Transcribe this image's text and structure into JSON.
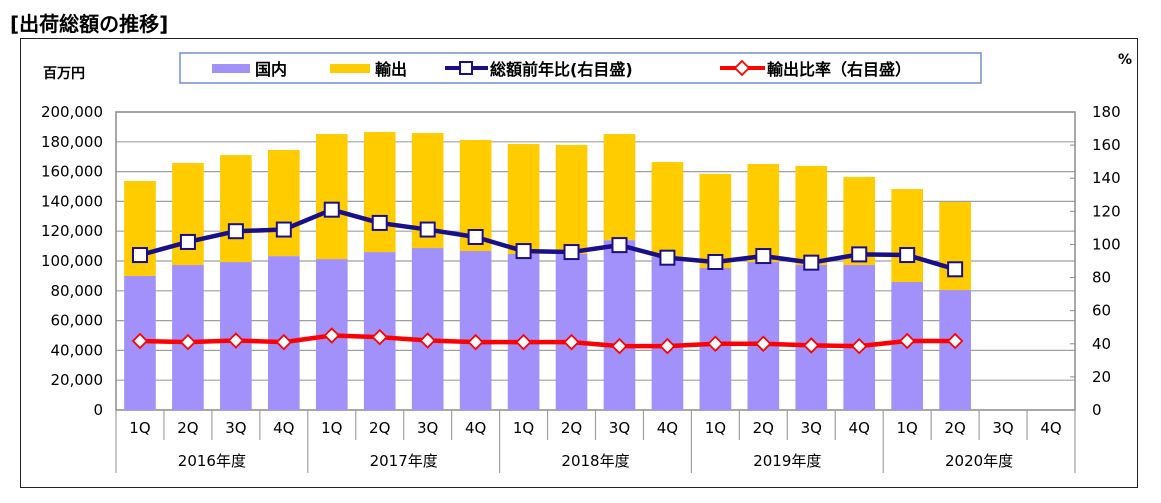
{
  "title": "[出荷総額の推移]",
  "chart_data": {
    "type": "bar",
    "stacked": true,
    "title": "[出荷総額の推移]",
    "left_axis": {
      "label": "百万円",
      "range": [
        0,
        200000
      ],
      "ticks": [
        "0",
        "20,000",
        "40,000",
        "60,000",
        "80,000",
        "100,000",
        "120,000",
        "140,000",
        "160,000",
        "180,000",
        "200,000"
      ],
      "tick_values": [
        0,
        20000,
        40000,
        60000,
        80000,
        100000,
        120000,
        140000,
        160000,
        180000,
        200000
      ]
    },
    "right_axis": {
      "label": "%",
      "range": [
        0,
        180
      ],
      "ticks": [
        "0",
        "20",
        "40",
        "60",
        "80",
        "100",
        "120",
        "140",
        "160",
        "180"
      ],
      "tick_values": [
        0,
        20,
        40,
        60,
        80,
        100,
        120,
        140,
        160,
        180
      ]
    },
    "grid": true,
    "legend_position": "top",
    "categories": [
      "1Q",
      "2Q",
      "3Q",
      "4Q",
      "1Q",
      "2Q",
      "3Q",
      "4Q",
      "1Q",
      "2Q",
      "3Q",
      "4Q",
      "1Q",
      "2Q",
      "3Q",
      "4Q",
      "1Q",
      "2Q",
      "3Q",
      "4Q"
    ],
    "groups": [
      {
        "label": "2016年度",
        "span": 4
      },
      {
        "label": "2017年度",
        "span": 4
      },
      {
        "label": "2018年度",
        "span": 4
      },
      {
        "label": "2019年度",
        "span": 4
      },
      {
        "label": "2020年度",
        "span": 4
      }
    ],
    "series": [
      {
        "name": "国内",
        "type": "bar",
        "axis": "left",
        "color": "#a291fb",
        "values": [
          90000,
          97300,
          99300,
          103300,
          101300,
          106000,
          108700,
          106700,
          104700,
          104700,
          114000,
          102700,
          95300,
          99300,
          97300,
          97300,
          85900,
          80500,
          null,
          null
        ]
      },
      {
        "name": "輸出",
        "type": "bar",
        "axis": "left",
        "color": "#ffcc00",
        "values": [
          63700,
          68500,
          71800,
          71200,
          83900,
          80600,
          77200,
          74500,
          73800,
          73200,
          71200,
          63700,
          63100,
          65800,
          66500,
          59100,
          62400,
          59100,
          null,
          null
        ]
      },
      {
        "name": "総額前年比(右目盛)",
        "type": "line",
        "axis": "right",
        "color": "#1a0f8a",
        "marker": "square",
        "values": [
          93.6,
          101.5,
          108,
          109,
          121,
          113,
          109,
          104.5,
          96,
          95.4,
          99.6,
          92,
          89.4,
          93,
          89,
          94,
          93.6,
          85,
          null,
          null
        ]
      },
      {
        "name": "輸出比率（右目盛）",
        "type": "line",
        "axis": "right",
        "color": "#ff0000",
        "marker": "diamond",
        "values": [
          41.7,
          41,
          42,
          41,
          45,
          44,
          42,
          41,
          41,
          41,
          38.6,
          38.6,
          40,
          40,
          39,
          38.6,
          41.7,
          41.7,
          null,
          null
        ]
      }
    ]
  }
}
